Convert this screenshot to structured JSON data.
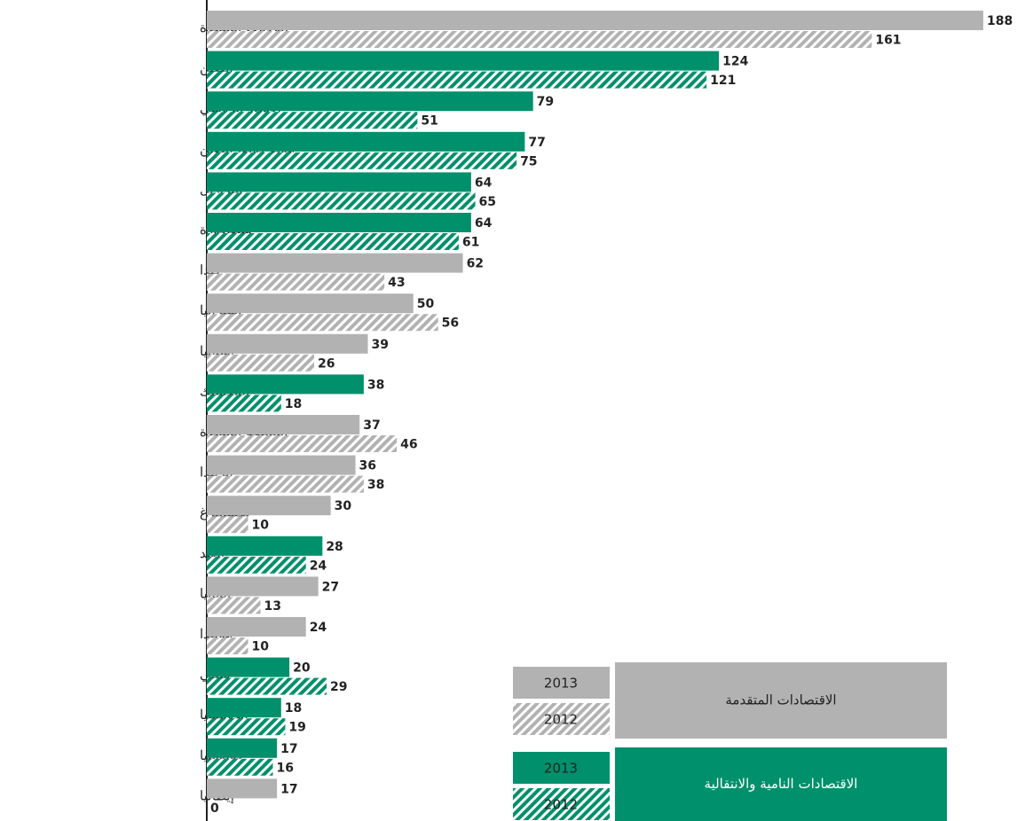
{
  "chart_data": {
    "type": "bar",
    "orientation": "horizontal",
    "categories": [
      "الولايات المتحدة",
      "الصين",
      "الاتحاد الروسي",
      "هونغ كونغ، الصين",
      "البرازيل",
      "سنغافورة",
      "كندا",
      "أستراليا",
      "إسبانيا",
      "المكسيك",
      "المملكة المتحدة",
      "أيرلندا",
      "لكسمبرغ",
      "الهند",
      "ألمانيا",
      "هولندا",
      "شيلي",
      "إندونيسيا",
      "كولومبيا",
      "إيطاليا"
    ],
    "series": [
      {
        "name": "2013",
        "pattern": "solid",
        "values": [
          188,
          124,
          79,
          77,
          64,
          64,
          62,
          50,
          39,
          38,
          37,
          36,
          30,
          28,
          27,
          24,
          20,
          18,
          17,
          17
        ]
      },
      {
        "name": "2012",
        "pattern": "hatch",
        "values": [
          161,
          121,
          51,
          75,
          65,
          61,
          43,
          56,
          26,
          18,
          46,
          38,
          10,
          24,
          13,
          10,
          29,
          19,
          16,
          0
        ]
      }
    ],
    "groups": [
      {
        "name": "الاقتصادات المتقدمة",
        "color": "#b2b2b2"
      },
      {
        "name": "الاقتصادات النامية والانتقالية",
        "color": "#00906b"
      }
    ],
    "category_groups": [
      0,
      1,
      1,
      1,
      1,
      1,
      0,
      0,
      0,
      1,
      0,
      0,
      0,
      1,
      0,
      0,
      1,
      1,
      1,
      0
    ]
  }
}
